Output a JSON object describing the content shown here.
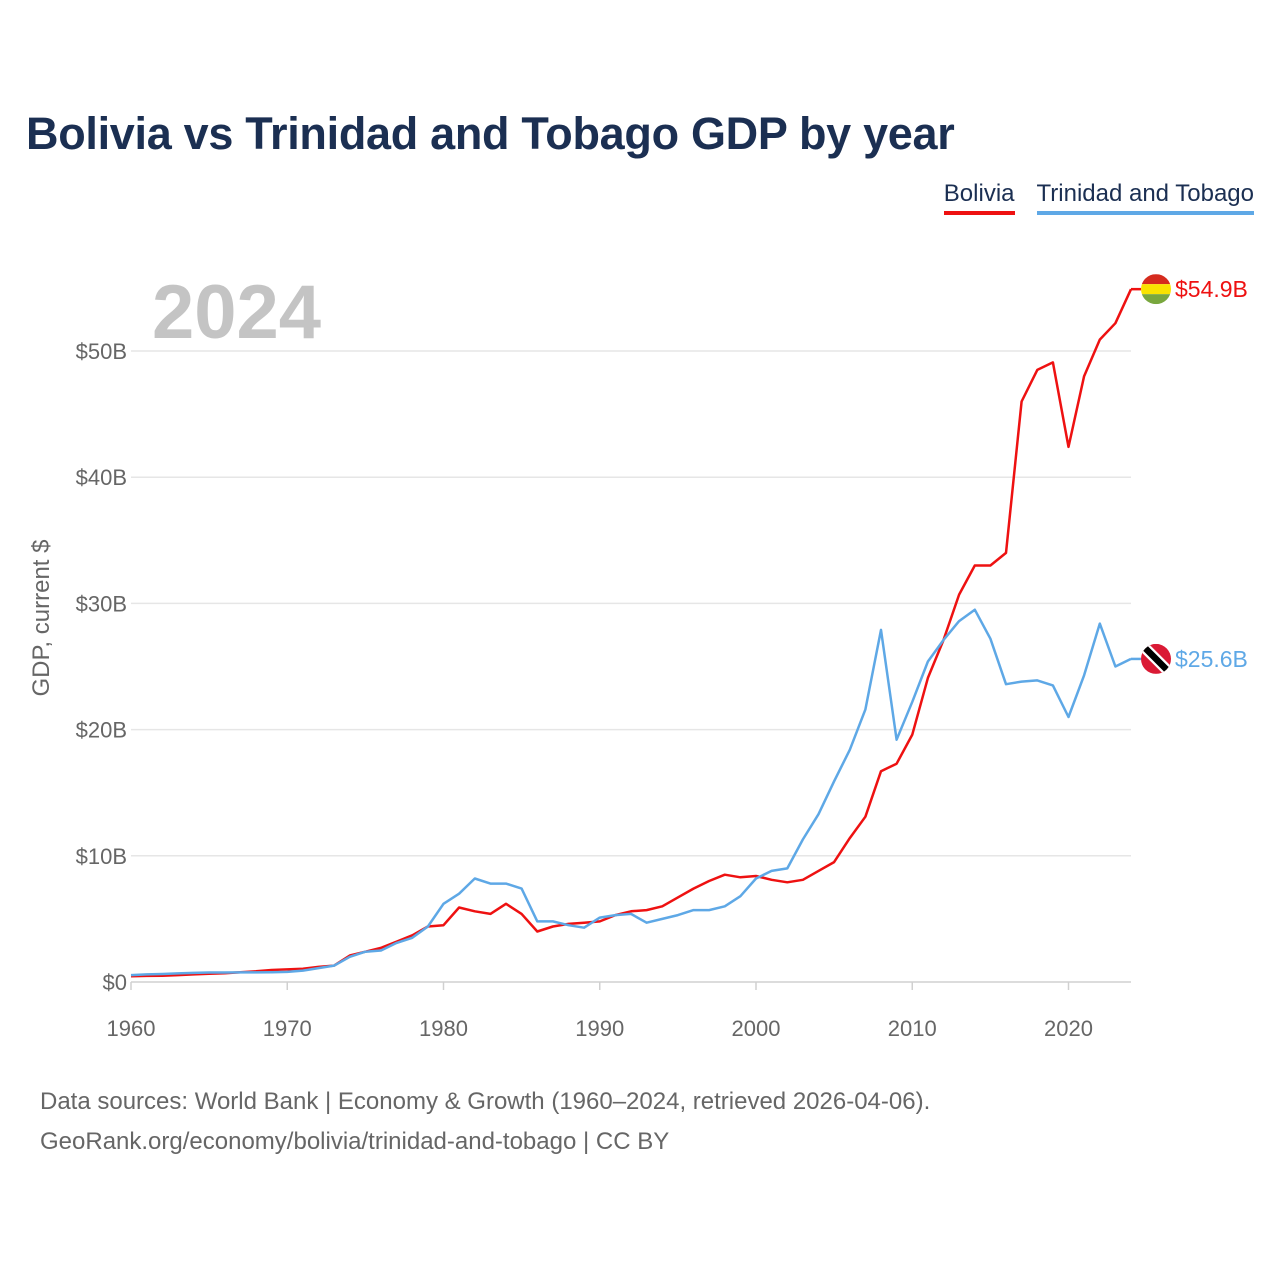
{
  "title": "Bolivia vs Trinidad and Tobago GDP by year",
  "legend": [
    {
      "name": "Bolivia",
      "color": "#ee1111"
    },
    {
      "name": "Trinidad and Tobago",
      "color": "#5ea8e6"
    }
  ],
  "year_watermark": "2024",
  "source_line1": "Data sources: World Bank | Economy & Growth (1960–2024, retrieved 2026-04-06).",
  "source_line2": "GeoRank.org/economy/bolivia/trinidad-and-tobago | CC BY",
  "chart_data": {
    "type": "line",
    "title": "Bolivia vs Trinidad and Tobago GDP by year",
    "xlabel": "",
    "ylabel": "GDP, current $",
    "xlim": [
      1960,
      2024
    ],
    "ylim": [
      0,
      55
    ],
    "x_ticks": [
      1960,
      1970,
      1980,
      1990,
      2000,
      2010,
      2020
    ],
    "y_ticks": [
      0,
      10,
      20,
      30,
      40,
      50
    ],
    "y_tick_labels": [
      "$0",
      "$10B",
      "$20B",
      "$30B",
      "$40B",
      "$50B"
    ],
    "grid": true,
    "units": "billions of current US$",
    "x": [
      1960,
      1961,
      1962,
      1963,
      1964,
      1965,
      1966,
      1967,
      1968,
      1969,
      1970,
      1971,
      1972,
      1973,
      1974,
      1975,
      1976,
      1977,
      1978,
      1979,
      1980,
      1981,
      1982,
      1983,
      1984,
      1985,
      1986,
      1987,
      1988,
      1989,
      1990,
      1991,
      1992,
      1993,
      1994,
      1995,
      1996,
      1997,
      1998,
      1999,
      2000,
      2001,
      2002,
      2003,
      2004,
      2005,
      2006,
      2007,
      2008,
      2009,
      2010,
      2011,
      2012,
      2013,
      2014,
      2015,
      2016,
      2017,
      2018,
      2019,
      2020,
      2021,
      2022,
      2023,
      2024
    ],
    "series": [
      {
        "name": "Bolivia",
        "color": "#ee1111",
        "end_label": "$54.9B",
        "values": [
          0.45,
          0.48,
          0.5,
          0.55,
          0.6,
          0.65,
          0.7,
          0.78,
          0.85,
          0.95,
          1.0,
          1.05,
          1.2,
          1.3,
          2.1,
          2.4,
          2.7,
          3.2,
          3.7,
          4.4,
          4.5,
          5.9,
          5.6,
          5.4,
          6.2,
          5.4,
          4.0,
          4.4,
          4.6,
          4.7,
          4.8,
          5.3,
          5.6,
          5.7,
          6.0,
          6.7,
          7.4,
          8.0,
          8.5,
          8.3,
          8.4,
          8.1,
          7.9,
          8.1,
          8.8,
          9.5,
          11.4,
          13.1,
          16.7,
          17.3,
          19.6,
          24.1,
          27.1,
          30.7,
          33.0,
          33.0,
          34.0,
          46.0,
          48.5,
          49.1,
          42.4,
          48.0,
          50.9,
          52.2,
          54.9
        ]
      },
      {
        "name": "Trinidad and Tobago",
        "color": "#5ea8e6",
        "end_label": "$25.6B",
        "values": [
          0.55,
          0.6,
          0.63,
          0.68,
          0.72,
          0.75,
          0.75,
          0.76,
          0.76,
          0.78,
          0.8,
          0.9,
          1.1,
          1.3,
          2.0,
          2.4,
          2.5,
          3.1,
          3.5,
          4.4,
          6.2,
          7.0,
          8.2,
          7.8,
          7.8,
          7.4,
          4.8,
          4.8,
          4.5,
          4.3,
          5.1,
          5.3,
          5.4,
          4.7,
          5.0,
          5.3,
          5.7,
          5.7,
          6.0,
          6.8,
          8.2,
          8.8,
          9.0,
          11.3,
          13.3,
          15.9,
          18.4,
          21.6,
          27.9,
          19.2,
          22.2,
          25.4,
          27.1,
          28.6,
          29.5,
          27.2,
          23.6,
          23.8,
          23.9,
          23.5,
          21.0,
          24.3,
          28.4,
          25.0,
          25.6
        ]
      }
    ]
  }
}
